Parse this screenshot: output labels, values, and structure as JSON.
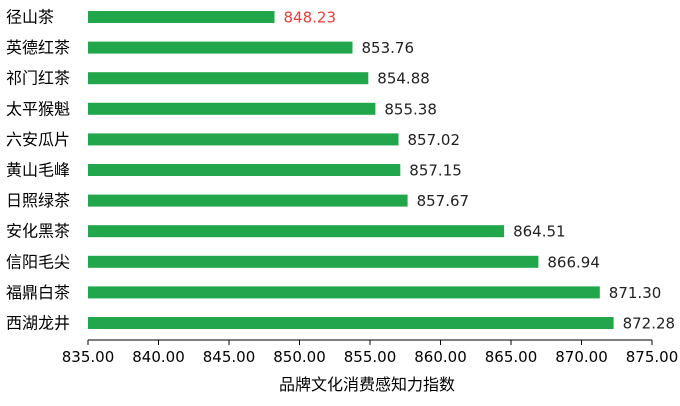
{
  "chart_data": {
    "type": "bar",
    "orientation": "horizontal",
    "xlabel": "品牌文化消费感知力指数",
    "xlim": [
      835,
      875
    ],
    "x_ticks": [
      "835.00",
      "840.00",
      "845.00",
      "850.00",
      "855.00",
      "860.00",
      "865.00",
      "870.00",
      "875.00"
    ],
    "categories": [
      "径山茶",
      "英德红茶",
      "祁门红茶",
      "太平猴魁",
      "六安瓜片",
      "黄山毛峰",
      "日照绿茶",
      "安化黑茶",
      "信阳毛尖",
      "福鼎白茶",
      "西湖龙井"
    ],
    "values": [
      848.23,
      853.76,
      854.88,
      855.38,
      857.02,
      857.15,
      857.67,
      864.51,
      866.94,
      871.3,
      872.28
    ],
    "value_labels": [
      "848.23",
      "853.76",
      "854.88",
      "855.38",
      "857.02",
      "857.15",
      "857.67",
      "864.51",
      "866.94",
      "871.30",
      "872.28"
    ],
    "grid": false,
    "colors": {
      "bar": "#21a64b",
      "highlight_label": "#e8413a",
      "label": "#222222",
      "axis": "#000000"
    },
    "highlight_index": 0
  }
}
